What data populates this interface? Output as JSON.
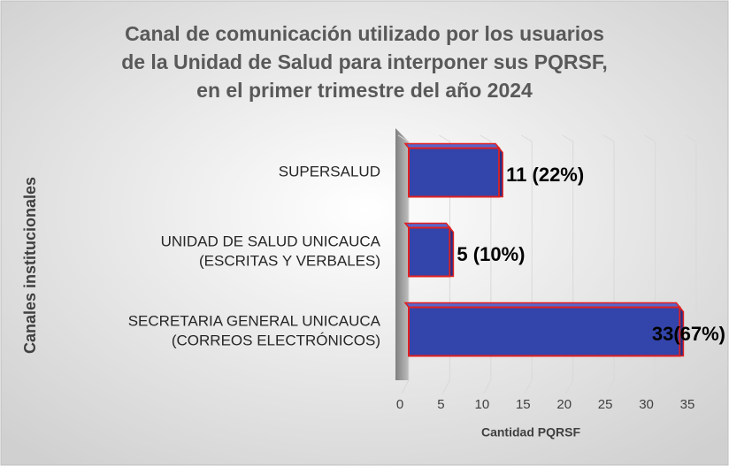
{
  "chart_data": {
    "type": "bar",
    "orientation": "horizontal",
    "title": [
      "Canal de comunicación utilizado por los usuarios",
      "de la Unidad de Salud para interponer sus PQRSF,",
      "en el primer trimestre del año 2024"
    ],
    "y_label": "Canales institucionales",
    "x_label": "Cantidad PQRSF",
    "categories": [
      [
        "SUPERSALUD"
      ],
      [
        "UNIDAD  DE SALUD UNICAUCA",
        "(ESCRITAS  Y VERBALES)"
      ],
      [
        "SECRETARIA  GENERAL UNICAUCA",
        "(CORREOS  ELECTRÓNICOS)"
      ]
    ],
    "values": [
      11,
      5,
      33
    ],
    "value_labels": [
      "11 (22%)",
      "5 (10%)",
      "33(67%)"
    ],
    "color": "#3344aa",
    "edge_color": "#e02020",
    "xlim": [
      0,
      35
    ],
    "xticks": [
      0,
      5,
      10,
      15,
      20,
      25,
      30,
      35
    ],
    "grid": true
  }
}
